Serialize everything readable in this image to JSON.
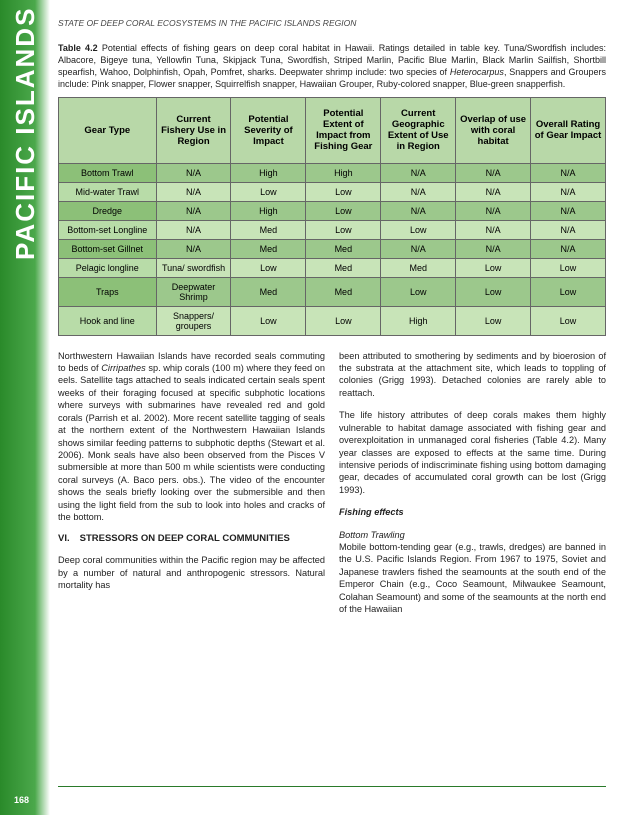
{
  "sidebar_label": "PACIFIC ISLANDS",
  "header": "STATE OF DEEP CORAL ECOSYSTEMS IN THE PACIFIC ISLANDS REGION",
  "page_number": "168",
  "table": {
    "caption_bold": "Table 4.2",
    "caption": "Potential effects of fishing gears on deep coral habitat in Hawaii. Ratings detailed in table key. Tuna/Swordfish includes: Albacore, Bigeye tuna, Yellowfin Tuna, Skipjack Tuna, Swordfish, Striped Marlin, Pacific Blue Marlin, Black Marlin Sailfish, Shortbill spearfish, Wahoo, Dolphinfish, Opah, Pomfret, sharks. Deepwater shrimp include: two species of ",
    "caption_italic": "Heterocarpus",
    "caption_tail": ", Snappers and Groupers include: Pink snapper, Flower snapper, Squirrelfish snapper, Hawaiian Grouper, Ruby-colored snapper, Blue-green snapperfish.",
    "headers": [
      "Gear Type",
      "Current Fishery Use in Region",
      "Potential Severity of Impact",
      "Potential Extent of Impact from Fishing Gear",
      "Current Geographic Extent of Use in Region",
      "Overlap of use with coral habitat",
      "Overall Rating of Gear Impact"
    ],
    "rows": [
      {
        "shade": "darker",
        "cells": [
          "Bottom Trawl",
          "N/A",
          "High",
          "High",
          "N/A",
          "N/A",
          "N/A"
        ]
      },
      {
        "shade": "lighter",
        "cells": [
          "Mid-water Trawl",
          "N/A",
          "Low",
          "Low",
          "N/A",
          "N/A",
          "N/A"
        ]
      },
      {
        "shade": "darker",
        "cells": [
          "Dredge",
          "N/A",
          "High",
          "Low",
          "N/A",
          "N/A",
          "N/A"
        ]
      },
      {
        "shade": "lighter",
        "cells": [
          "Bottom-set Longline",
          "N/A",
          "Med",
          "Low",
          "Low",
          "N/A",
          "N/A"
        ]
      },
      {
        "shade": "darker",
        "cells": [
          "Bottom-set Gillnet",
          "N/A",
          "Med",
          "Med",
          "N/A",
          "N/A",
          "N/A"
        ]
      },
      {
        "shade": "lighter",
        "cells": [
          "Pelagic longline",
          "Tuna/ swordfish",
          "Low",
          "Med",
          "Med",
          "Low",
          "Low"
        ]
      },
      {
        "shade": "darker",
        "cells": [
          "Traps",
          "Deepwater Shrimp",
          "Med",
          "Med",
          "Low",
          "Low",
          "Low"
        ]
      },
      {
        "shade": "lighter",
        "cells": [
          "Hook and line",
          "Snappers/ groupers",
          "Low",
          "Low",
          "High",
          "Low",
          "Low"
        ]
      }
    ]
  },
  "left_col": {
    "p1a": "Northwestern Hawaiian Islands have recorded seals commuting to beds of ",
    "p1_italic": "Cirripathes",
    "p1b": " sp. whip corals (100 m) where they feed on eels. Satellite tags attached to seals indicated certain seals spent weeks of their foraging focused at specific subphotic locations where surveys with submarines have revealed red and gold corals (Parrish et al. 2002). More recent satellite tagging of seals at the northern extent of the Northwestern Hawaiian Islands shows similar feeding patterns to subphotic depths (Stewart et al. 2006). Monk seals have also been observed from the Pisces V submersible at more than 500 m while scientists were conducting coral surveys (A. Baco pers. obs.). The video of the encounter shows the seals briefly looking over the submersible and then using the light field from the sub to look into holes and cracks of the bottom.",
    "section_num": "VI.",
    "section_title": "STRESSORS ON DEEP CORAL COMMUNITIES",
    "p2": "Deep coral communities within the Pacific region may be affected by a number of natural and anthropogenic stressors. Natural mortality has"
  },
  "right_col": {
    "p1": "been attributed to smothering by sediments and by bioerosion of the substrata at the attachment site, which leads to toppling of colonies (Grigg 1993). Detached colonies are rarely able to reattach.",
    "p2": "The life history attributes of deep corals makes them highly vulnerable to habitat damage associated with fishing gear and overexploitation in unmanaged coral fisheries (Table 4.2). Many year classes are exposed to effects at the same time. During intensive periods of indiscriminate fishing using bottom damaging gear, decades of accumulated coral growth can be lost (Grigg 1993).",
    "subhead": "Fishing effects",
    "sub2": "Bottom Trawling",
    "p3": "Mobile bottom-tending gear (e.g., trawls, dredges) are banned in the U.S. Pacific Islands Region. From 1967 to 1975, Soviet and Japanese trawlers fished the seamounts at the south end of the Emperor Chain (e.g., Coco Seamount, Milwaukee Seamount, Colahan Seamount) and some of the seamounts at the north end of the Hawaiian"
  }
}
